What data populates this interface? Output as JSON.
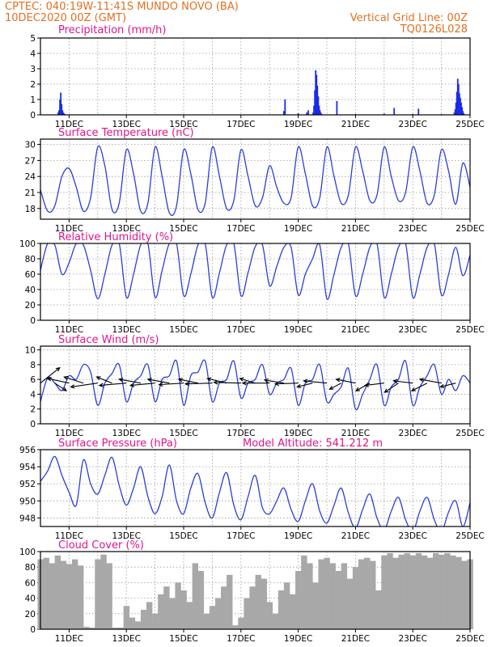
{
  "header": {
    "line1_left": "CPTEC:   040:19W-11:41S   MUNDO NOVO (BA)",
    "line2_left": "10DEC2020 00Z (GMT)",
    "line1_right": "Vertical Grid Line: 00Z",
    "line2_right": "TQ0126L028"
  },
  "colors": {
    "header": "#e07020",
    "title": "#e0158c",
    "line": "#2a3fd8",
    "bar_blue": "#1a2bea",
    "cloud": "#a8a8a8",
    "vector": "#000000"
  },
  "x_axis": {
    "start": "10DEC2020 00Z",
    "end": "25DEC2020 00Z",
    "tick_labels": [
      "11DEC",
      "13DEC",
      "15DEC",
      "17DEC",
      "19DEC",
      "21DEC",
      "23DEC",
      "25DEC"
    ]
  },
  "chart_data": [
    {
      "id": "precipitation",
      "type": "bar",
      "title": "Precipitation (mm/h)",
      "ylim": [
        0,
        5
      ],
      "yticks": [
        0,
        1,
        2,
        3,
        4,
        5
      ],
      "x_unit": "days since 10DEC2020 00Z",
      "x": [
        0.62,
        0.65,
        0.68,
        0.71,
        0.74,
        0.77,
        0.8,
        0.83,
        0.86,
        1.1,
        1.5,
        2.2,
        3.0,
        4.1,
        5.0,
        6.2,
        7.3,
        8.1,
        8.5,
        8.54,
        9.0,
        9.3,
        9.35,
        9.52,
        9.55,
        9.58,
        9.61,
        9.64,
        9.67,
        9.7,
        9.73,
        9.76,
        9.79,
        9.82,
        10.35,
        11.0,
        12.0,
        12.35,
        13.0,
        13.2,
        14.0,
        14.45,
        14.48,
        14.51,
        14.54,
        14.57,
        14.6,
        14.63,
        14.66,
        14.69,
        14.72,
        14.75,
        14.78
      ],
      "values": [
        0.15,
        0.3,
        1.0,
        1.45,
        0.7,
        0.3,
        0.15,
        0.08,
        0.04,
        0.03,
        0.02,
        0.03,
        0.02,
        0.03,
        0.02,
        0.03,
        0.02,
        0.03,
        0.25,
        1.0,
        0.1,
        0.15,
        0.3,
        0.15,
        0.6,
        1.6,
        2.9,
        2.6,
        1.9,
        1.2,
        0.6,
        0.3,
        0.15,
        0.05,
        0.9,
        0.05,
        0.08,
        0.45,
        0.05,
        0.4,
        0.05,
        0.15,
        0.35,
        0.8,
        1.5,
        2.35,
        2.0,
        1.4,
        1.1,
        0.8,
        0.5,
        0.25,
        0.1
      ]
    },
    {
      "id": "temperature",
      "type": "line",
      "title": "Surface Temperature (nC)",
      "ylim": [
        16,
        31
      ],
      "yticks": [
        18,
        21,
        24,
        27,
        30
      ],
      "x_unit": "days since 10DEC2020 00Z",
      "x": [
        0,
        0.25,
        0.5,
        0.75,
        1,
        1.25,
        1.5,
        1.75,
        2,
        2.25,
        2.5,
        2.75,
        3,
        3.25,
        3.5,
        3.75,
        4,
        4.25,
        4.5,
        4.75,
        5,
        5.25,
        5.5,
        5.75,
        6,
        6.25,
        6.5,
        6.75,
        7,
        7.25,
        7.5,
        7.75,
        8,
        8.25,
        8.5,
        8.75,
        9,
        9.25,
        9.5,
        9.75,
        10,
        10.25,
        10.5,
        10.75,
        11,
        11.25,
        11.5,
        11.75,
        12,
        12.25,
        12.5,
        12.75,
        13,
        13.25,
        13.5,
        13.75,
        14,
        14.25,
        14.5,
        14.75,
        15
      ],
      "values": [
        21.5,
        17.5,
        18.5,
        24,
        25.5,
        22,
        17.5,
        20,
        29.5,
        26,
        17.8,
        19,
        29,
        24.5,
        17.5,
        19,
        29.5,
        24,
        17.2,
        18.5,
        29,
        24.5,
        17.8,
        19,
        29.5,
        24,
        18,
        19.5,
        29,
        24,
        18.5,
        20,
        26,
        22,
        19,
        20,
        29.5,
        24.5,
        18.5,
        20,
        29.5,
        24,
        19,
        20.5,
        29.5,
        25,
        19.5,
        20.5,
        29.5,
        24,
        19.5,
        21,
        29.5,
        25,
        19,
        20.5,
        29,
        25,
        18.8,
        26.5,
        22
      ]
    },
    {
      "id": "humidity",
      "type": "line",
      "title": "Relative Humidity (%)",
      "ylim": [
        0,
        100
      ],
      "yticks": [
        0,
        20,
        40,
        60,
        80,
        100
      ],
      "x_unit": "days since 10DEC2020 00Z",
      "x": [
        0,
        0.25,
        0.5,
        0.75,
        1,
        1.25,
        1.5,
        1.75,
        2,
        2.25,
        2.5,
        2.75,
        3,
        3.25,
        3.5,
        3.75,
        4,
        4.25,
        4.5,
        4.75,
        5,
        5.25,
        5.5,
        5.75,
        6,
        6.25,
        6.5,
        6.75,
        7,
        7.25,
        7.5,
        7.75,
        8,
        8.25,
        8.5,
        8.75,
        9,
        9.25,
        9.5,
        9.75,
        10,
        10.25,
        10.5,
        10.75,
        11,
        11.25,
        11.5,
        11.75,
        12,
        12.25,
        12.5,
        12.75,
        13,
        13.25,
        13.5,
        13.75,
        14,
        14.25,
        14.5,
        14.75,
        15
      ],
      "values": [
        65,
        100,
        98,
        60,
        75,
        100,
        98,
        65,
        28,
        60,
        98,
        100,
        30,
        60,
        98,
        100,
        30,
        65,
        100,
        100,
        32,
        60,
        98,
        100,
        30,
        62,
        98,
        100,
        32,
        62,
        96,
        98,
        45,
        70,
        95,
        95,
        33,
        60,
        80,
        98,
        28,
        60,
        95,
        100,
        32,
        60,
        95,
        100,
        30,
        60,
        95,
        100,
        30,
        60,
        95,
        100,
        33,
        60,
        95,
        58,
        85
      ]
    },
    {
      "id": "wind",
      "type": "line",
      "title": "Surface Wind (m/s)",
      "ylim": [
        0,
        10.5
      ],
      "yticks": [
        0,
        2,
        4,
        6,
        8,
        10
      ],
      "x_unit": "days since 10DEC2020 00Z",
      "x": [
        0,
        0.25,
        0.5,
        0.75,
        1,
        1.25,
        1.5,
        1.75,
        2,
        2.25,
        2.5,
        2.75,
        3,
        3.25,
        3.5,
        3.75,
        4,
        4.25,
        4.5,
        4.75,
        5,
        5.25,
        5.5,
        5.75,
        6,
        6.25,
        6.5,
        6.75,
        7,
        7.25,
        7.5,
        7.75,
        8,
        8.25,
        8.5,
        8.75,
        9,
        9.25,
        9.5,
        9.75,
        10,
        10.25,
        10.5,
        10.75,
        11,
        11.25,
        11.5,
        11.75,
        12,
        12.25,
        12.5,
        12.75,
        13,
        13.25,
        13.5,
        13.75,
        14,
        14.25,
        14.5,
        14.75,
        15
      ],
      "values": [
        3,
        6.2,
        5.5,
        4.5,
        6.5,
        6,
        8,
        7,
        2.5,
        5.5,
        6.8,
        8,
        3,
        5.5,
        6.5,
        8,
        3,
        6,
        6.5,
        8.5,
        2.5,
        6.5,
        7,
        8.5,
        3,
        5.5,
        6,
        8.5,
        3.5,
        5.5,
        6,
        8,
        4,
        5.5,
        6,
        7.5,
        2.5,
        5.5,
        6,
        8,
        3,
        4,
        5,
        7.5,
        2,
        4,
        6,
        8,
        2.5,
        5,
        6,
        8.5,
        2.5,
        5,
        6.5,
        8,
        4,
        6,
        4.5,
        6.5,
        5.5
      ]
    },
    {
      "id": "wind_vectors",
      "type": "scatter",
      "title": "",
      "x_unit": "days since 10DEC2020 00Z",
      "x": [
        0,
        0.5,
        1,
        1.5,
        2,
        2.5,
        3,
        3.5,
        4,
        4.5,
        5,
        5.5,
        6,
        6.5,
        7,
        7.5,
        8,
        8.5,
        9,
        9.5,
        10,
        10.5,
        11,
        11.5,
        12,
        12.5,
        13,
        13.5,
        14,
        14.5
      ],
      "u": [
        2.5,
        1.5,
        -2.8,
        -2.5,
        -3.5,
        -2,
        -3.5,
        -2.8,
        -3.2,
        -2.8,
        -3.2,
        -2.5,
        -3.5,
        -2.5,
        -3.5,
        -2,
        -3.5,
        -2.5,
        -3,
        -2,
        -3,
        -1.5,
        -2.5,
        -1.8,
        -2.5,
        -1.8,
        -2.5,
        -2,
        -2.8,
        -2
      ],
      "v": [
        2,
        -1,
        0.6,
        0.8,
        -0.5,
        0.8,
        -0.3,
        0.5,
        -0.3,
        0.5,
        -0.2,
        0.5,
        -0.1,
        0.6,
        0.1,
        0.6,
        0,
        0.4,
        -0.1,
        -0.5,
        0.3,
        -0.8,
        0.5,
        -1,
        -0.3,
        -1.2,
        0.3,
        -1,
        0.5,
        -0.5
      ]
    },
    {
      "id": "pressure",
      "type": "line",
      "title": "Surface Pressure (hPa)",
      "annotation": "Model Altitude: 541.212 m",
      "ylim": [
        947,
        956
      ],
      "yticks": [
        948,
        950,
        952,
        954,
        956
      ],
      "x_unit": "days since 10DEC2020 00Z",
      "x": [
        0,
        0.25,
        0.5,
        0.75,
        1,
        1.25,
        1.5,
        1.75,
        2,
        2.25,
        2.5,
        2.75,
        3,
        3.25,
        3.5,
        3.75,
        4,
        4.25,
        4.5,
        4.75,
        5,
        5.25,
        5.5,
        5.75,
        6,
        6.25,
        6.5,
        6.75,
        7,
        7.25,
        7.5,
        7.75,
        8,
        8.25,
        8.5,
        8.75,
        9,
        9.25,
        9.5,
        9.75,
        10,
        10.25,
        10.5,
        10.75,
        11,
        11.25,
        11.5,
        11.75,
        12,
        12.25,
        12.5,
        12.75,
        13,
        13.25,
        13.5,
        13.75,
        14,
        14.25,
        14.5,
        14.75,
        15
      ],
      "values": [
        952.3,
        953.5,
        955.2,
        953,
        951,
        949.5,
        954.8,
        952,
        950.8,
        953,
        955.1,
        951.8,
        949.5,
        951.5,
        954,
        950.5,
        948.5,
        950.5,
        954.2,
        950,
        948.5,
        951.5,
        953.2,
        949.8,
        948,
        951,
        953.3,
        949.5,
        947.8,
        950.5,
        953,
        949.2,
        948.5,
        950,
        951.5,
        949,
        947.6,
        950,
        952,
        948.8,
        947.4,
        949.5,
        951.5,
        948.6,
        946.8,
        949,
        950.8,
        948,
        946.6,
        948.8,
        950.4,
        947.8,
        946.4,
        948.8,
        950.4,
        947.8,
        946.4,
        948.7,
        950,
        947,
        949.8
      ]
    },
    {
      "id": "cloud_cover",
      "type": "area",
      "title": "Cloud Cover (%)",
      "ylim": [
        0,
        100
      ],
      "yticks": [
        0,
        20,
        40,
        60,
        80,
        100
      ],
      "x_unit": "days since 10DEC2020 00Z",
      "x": [
        0,
        0.2,
        0.4,
        0.6,
        0.8,
        1.0,
        1.2,
        1.4,
        1.6,
        1.8,
        2.0,
        2.2,
        2.4,
        2.6,
        2.8,
        3.0,
        3.2,
        3.4,
        3.6,
        3.8,
        4.0,
        4.2,
        4.4,
        4.6,
        4.8,
        5.0,
        5.2,
        5.4,
        5.6,
        5.8,
        6.0,
        6.2,
        6.4,
        6.6,
        6.8,
        7.0,
        7.2,
        7.4,
        7.6,
        7.8,
        8.0,
        8.2,
        8.4,
        8.6,
        8.8,
        9.0,
        9.2,
        9.4,
        9.6,
        9.8,
        10.0,
        10.2,
        10.4,
        10.6,
        10.8,
        11.0,
        11.2,
        11.4,
        11.6,
        11.8,
        12.0,
        12.2,
        12.4,
        12.6,
        12.8,
        13.0,
        13.2,
        13.4,
        13.6,
        13.8,
        14.0,
        14.2,
        14.4,
        14.6,
        14.8,
        15.0
      ],
      "values": [
        90,
        92,
        85,
        95,
        88,
        84,
        90,
        82,
        3,
        2,
        90,
        96,
        85,
        2,
        2,
        30,
        15,
        10,
        25,
        35,
        20,
        45,
        55,
        40,
        60,
        50,
        35,
        85,
        75,
        20,
        30,
        40,
        55,
        70,
        5,
        15,
        40,
        55,
        70,
        65,
        35,
        20,
        50,
        60,
        45,
        75,
        95,
        85,
        60,
        90,
        92,
        85,
        75,
        85,
        65,
        80,
        90,
        92,
        88,
        50,
        95,
        98,
        92,
        96,
        98,
        95,
        98,
        95,
        92,
        98,
        96,
        98,
        95,
        93,
        88,
        90
      ]
    }
  ]
}
